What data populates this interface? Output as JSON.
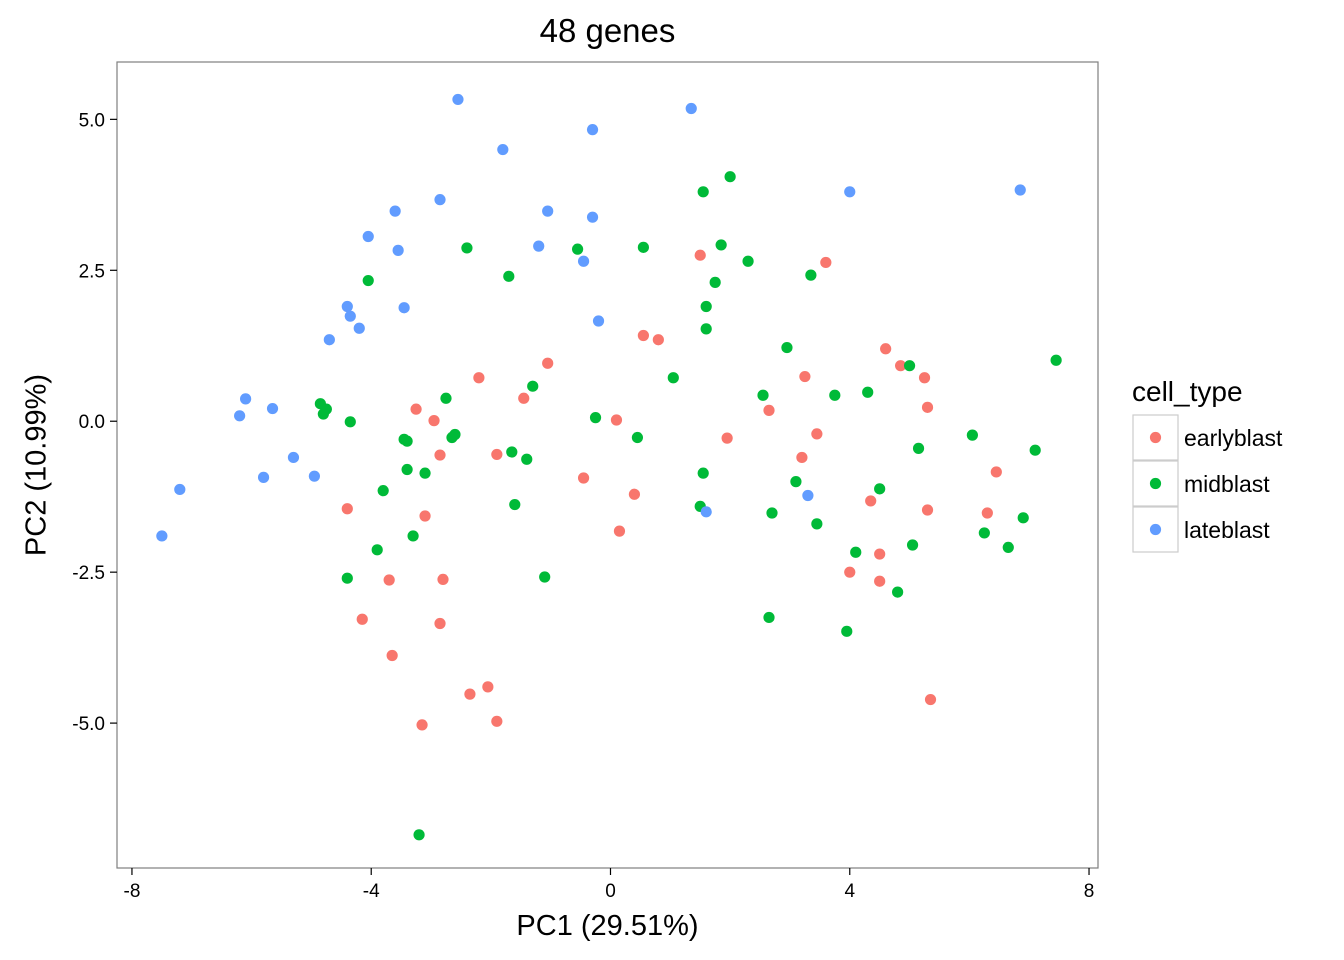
{
  "chart_data": {
    "type": "scatter",
    "title": "48 genes",
    "xlabel": "PC1 (29.51%)",
    "ylabel": "PC2 (10.99%)",
    "xlim": [
      -8.25,
      8.15
    ],
    "ylim": [
      -7.4,
      5.95
    ],
    "x_ticks": [
      -8,
      -4,
      0,
      4,
      8
    ],
    "x_tick_labels": [
      "-8",
      "-4",
      "0",
      "4",
      "8"
    ],
    "y_ticks": [
      5.0,
      2.5,
      0.0,
      -2.5,
      -5.0
    ],
    "y_tick_labels": [
      "5.0",
      "2.5",
      "0.0",
      "-2.5",
      "-5.0"
    ],
    "grid": false,
    "legend": {
      "title": "cell_type",
      "position": "right"
    },
    "series": [
      {
        "name": "earlyblast",
        "color": "#F8766D",
        "points": [
          [
            1.5,
            2.75
          ],
          [
            3.6,
            2.63
          ],
          [
            0.55,
            1.42
          ],
          [
            0.8,
            1.35
          ],
          [
            4.6,
            1.2
          ],
          [
            4.85,
            0.92
          ],
          [
            5.25,
            0.72
          ],
          [
            -2.2,
            0.72
          ],
          [
            -1.05,
            0.96
          ],
          [
            3.25,
            0.74
          ],
          [
            -1.45,
            0.38
          ],
          [
            -3.25,
            0.2
          ],
          [
            -2.95,
            0.01
          ],
          [
            0.1,
            0.02
          ],
          [
            5.3,
            0.23
          ],
          [
            2.65,
            0.18
          ],
          [
            3.45,
            -0.21
          ],
          [
            1.95,
            -0.28
          ],
          [
            -1.9,
            -0.55
          ],
          [
            -2.85,
            -0.56
          ],
          [
            3.2,
            -0.6
          ],
          [
            -0.45,
            -0.94
          ],
          [
            6.45,
            -0.84
          ],
          [
            0.4,
            -1.21
          ],
          [
            4.35,
            -1.32
          ],
          [
            -4.4,
            -1.45
          ],
          [
            -3.1,
            -1.57
          ],
          [
            6.3,
            -1.52
          ],
          [
            5.3,
            -1.47
          ],
          [
            0.15,
            -1.82
          ],
          [
            4.5,
            -2.2
          ],
          [
            4.0,
            -2.5
          ],
          [
            4.5,
            -2.65
          ],
          [
            -3.7,
            -2.63
          ],
          [
            -2.8,
            -2.62
          ],
          [
            -4.15,
            -3.28
          ],
          [
            -2.85,
            -3.35
          ],
          [
            -3.65,
            -3.88
          ],
          [
            -2.35,
            -4.52
          ],
          [
            -2.05,
            -4.4
          ],
          [
            -1.9,
            -4.97
          ],
          [
            -3.15,
            -5.03
          ],
          [
            5.35,
            -4.61
          ]
        ]
      },
      {
        "name": "midblast",
        "color": "#00BA38",
        "points": [
          [
            2.0,
            4.05
          ],
          [
            1.55,
            3.8
          ],
          [
            -2.4,
            2.87
          ],
          [
            -0.55,
            2.85
          ],
          [
            0.55,
            2.88
          ],
          [
            1.85,
            2.92
          ],
          [
            2.3,
            2.65
          ],
          [
            -1.7,
            2.4
          ],
          [
            3.35,
            2.42
          ],
          [
            1.75,
            2.3
          ],
          [
            -4.05,
            2.33
          ],
          [
            1.6,
            1.9
          ],
          [
            1.6,
            1.53
          ],
          [
            2.95,
            1.22
          ],
          [
            7.45,
            1.01
          ],
          [
            5.0,
            0.92
          ],
          [
            1.05,
            0.72
          ],
          [
            -1.3,
            0.58
          ],
          [
            4.3,
            0.48
          ],
          [
            2.55,
            0.43
          ],
          [
            3.75,
            0.43
          ],
          [
            -2.75,
            0.38
          ],
          [
            -4.85,
            0.29
          ],
          [
            -4.75,
            0.2
          ],
          [
            -4.8,
            0.12
          ],
          [
            -0.25,
            0.06
          ],
          [
            -4.35,
            -0.01
          ],
          [
            6.05,
            -0.23
          ],
          [
            0.45,
            -0.27
          ],
          [
            -2.6,
            -0.22
          ],
          [
            -2.65,
            -0.27
          ],
          [
            -3.45,
            -0.3
          ],
          [
            -3.4,
            -0.33
          ],
          [
            5.15,
            -0.45
          ],
          [
            7.1,
            -0.48
          ],
          [
            -1.65,
            -0.51
          ],
          [
            -1.4,
            -0.63
          ],
          [
            -3.4,
            -0.8
          ],
          [
            -3.1,
            -0.86
          ],
          [
            1.55,
            -0.86
          ],
          [
            3.1,
            -1.0
          ],
          [
            4.5,
            -1.12
          ],
          [
            -3.8,
            -1.15
          ],
          [
            -1.6,
            -1.38
          ],
          [
            1.5,
            -1.41
          ],
          [
            2.7,
            -1.52
          ],
          [
            6.9,
            -1.6
          ],
          [
            3.45,
            -1.7
          ],
          [
            6.25,
            -1.85
          ],
          [
            -3.3,
            -1.9
          ],
          [
            5.05,
            -2.05
          ],
          [
            6.65,
            -2.09
          ],
          [
            -3.9,
            -2.13
          ],
          [
            4.1,
            -2.17
          ],
          [
            -4.4,
            -2.6
          ],
          [
            -1.1,
            -2.58
          ],
          [
            4.8,
            -2.83
          ],
          [
            2.65,
            -3.25
          ],
          [
            3.95,
            -3.48
          ],
          [
            -3.2,
            -6.85
          ]
        ]
      },
      {
        "name": "lateblast",
        "color": "#619CFF",
        "points": [
          [
            -2.55,
            5.33
          ],
          [
            1.35,
            5.18
          ],
          [
            -0.3,
            4.83
          ],
          [
            -1.8,
            4.5
          ],
          [
            4.0,
            3.8
          ],
          [
            6.85,
            3.83
          ],
          [
            -2.85,
            3.67
          ],
          [
            -3.6,
            3.48
          ],
          [
            -1.05,
            3.48
          ],
          [
            -0.3,
            3.38
          ],
          [
            -4.05,
            3.06
          ],
          [
            -1.2,
            2.9
          ],
          [
            -3.55,
            2.83
          ],
          [
            -0.45,
            2.65
          ],
          [
            -3.45,
            1.88
          ],
          [
            -4.4,
            1.9
          ],
          [
            -4.35,
            1.74
          ],
          [
            -4.2,
            1.54
          ],
          [
            -0.2,
            1.66
          ],
          [
            -4.7,
            1.35
          ],
          [
            -6.1,
            0.37
          ],
          [
            -5.65,
            0.21
          ],
          [
            -6.2,
            0.09
          ],
          [
            -5.3,
            -0.6
          ],
          [
            -5.8,
            -0.93
          ],
          [
            -4.95,
            -0.91
          ],
          [
            -7.2,
            -1.13
          ],
          [
            -7.5,
            -1.9
          ],
          [
            1.6,
            -1.5
          ],
          [
            3.3,
            -1.23
          ]
        ]
      }
    ]
  }
}
